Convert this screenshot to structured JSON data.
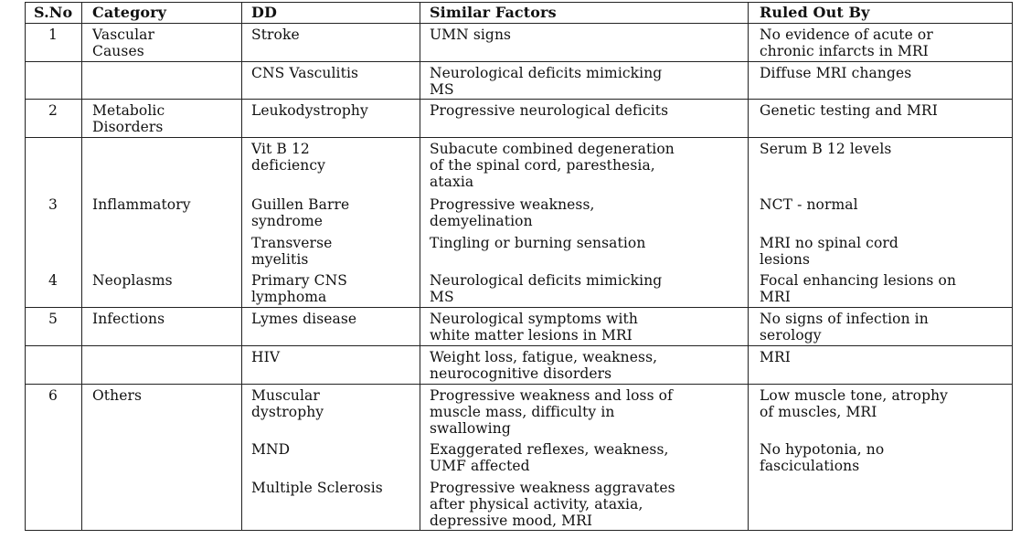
{
  "headers": [
    "S.No",
    "Category",
    "DD",
    "Similar Factors",
    "Ruled Out By"
  ],
  "rows": [
    {
      "sno": "1",
      "category": "Vascular\nCauses",
      "dd": "Stroke",
      "factors": "UMN signs",
      "ruled": "No evidence of acute or\nchronic infarcts in MRI"
    },
    {
      "sno": "",
      "category": "",
      "dd": "CNS Vasculitis",
      "factors": "Neurological deficits mimicking\nMS",
      "ruled": "Diffuse MRI changes"
    },
    {
      "sno": "2",
      "category": "Metabolic\nDisorders",
      "dd": "Leukodystrophy",
      "factors": "Progressive neurological deficits",
      "ruled": "Genetic testing and MRI"
    },
    {
      "sno": "",
      "category": "",
      "dd": "Vit B 12\ndeficiency",
      "factors": "Subacute combined degeneration\nof the spinal cord, paresthesia,\nataxia",
      "ruled": "Serum B 12 levels"
    },
    {
      "sno": "3",
      "category": "Inflammatory",
      "dd": "Guillen Barre\nsyndrome",
      "factors": "Progressive weakness,\ndemyelination",
      "ruled": "NCT - normal"
    },
    {
      "sno": "",
      "category": "",
      "dd": "Transverse\nmyelitis",
      "factors": "Tingling or burning sensation",
      "ruled": "MRI    no spinal cord\nlesions"
    },
    {
      "sno": "4",
      "category": "Neoplasms",
      "dd": "Primary CNS\nlymphoma",
      "factors": "Neurological deficits mimicking\nMS",
      "ruled": "Focal enhancing lesions on\nMRI"
    },
    {
      "sno": "5",
      "category": "Infections",
      "dd": "Lymes disease",
      "factors": "Neurological symptoms with\nwhite matter lesions in MRI",
      "ruled": "No signs of infection in\nserology"
    },
    {
      "sno": "",
      "category": "",
      "dd": "HIV",
      "factors": "Weight loss, fatigue, weakness,\nneurocognitive disorders",
      "ruled": "MRI"
    },
    {
      "sno": "6",
      "category": "Others",
      "dd": "Muscular\ndystrophy",
      "factors": "Progressive weakness and loss of\nmuscle mass, difficulty in\nswallowing",
      "ruled": "Low muscle tone, atrophy\nof muscles, MRI"
    },
    {
      "sno": "",
      "category": "",
      "dd": "MND",
      "factors": "Exaggerated reflexes, weakness,\nUMF affected",
      "ruled": "No hypotonia, no\nfasciculations"
    },
    {
      "sno": "",
      "category": "",
      "dd": "Multiple Sclerosis",
      "factors": "Progressive weakness aggravates\nafter physical activity, ataxia,\ndepressive mood, MRI",
      "ruled": ""
    }
  ]
}
